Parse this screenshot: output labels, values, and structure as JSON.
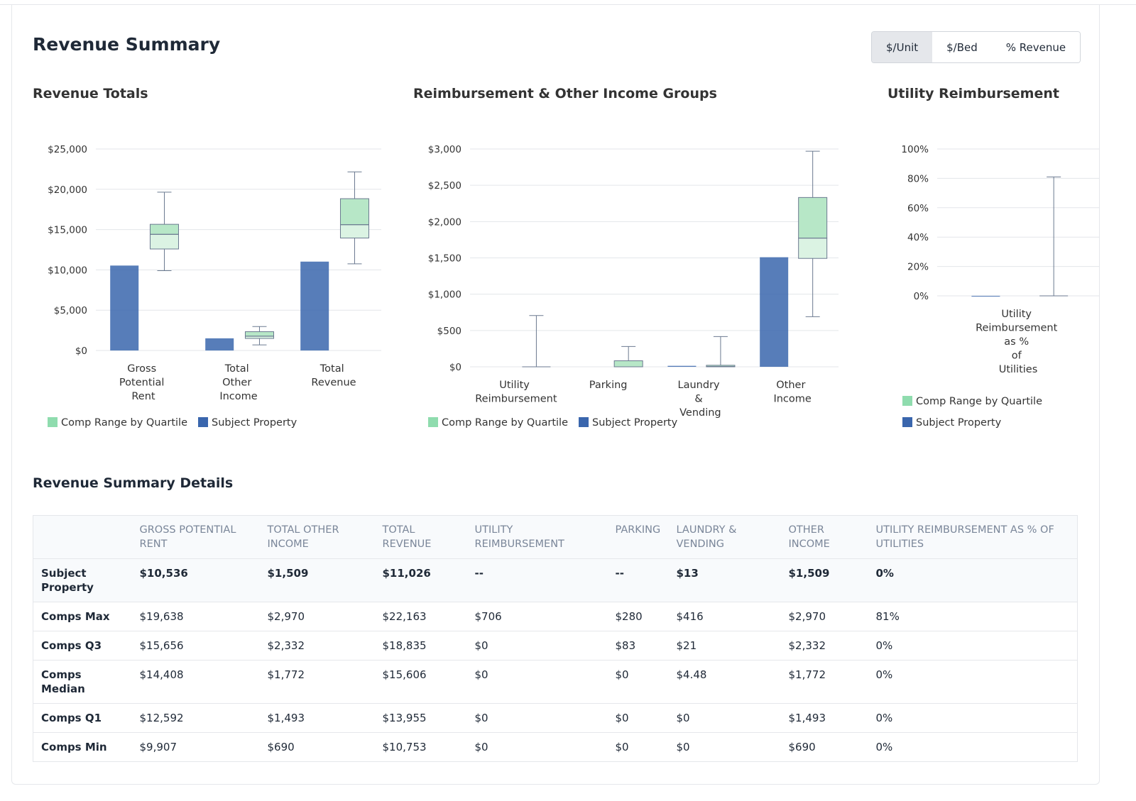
{
  "title": "Revenue Summary",
  "toggle": {
    "options": [
      "$/Unit",
      "$/Bed",
      "% Revenue"
    ],
    "active": 0
  },
  "chart_data": [
    {
      "type": "box",
      "title": "Revenue Totals",
      "categories": [
        "Gross Potential Rent",
        "Total Other Income",
        "Total Revenue"
      ],
      "ylim": [
        0,
        25000
      ],
      "yticks": [
        {
          "value": 0,
          "label": "$0"
        },
        {
          "value": 5000,
          "label": "$5,000"
        },
        {
          "value": 10000,
          "label": "$10,000"
        },
        {
          "value": 15000,
          "label": "$15,000"
        },
        {
          "value": 20000,
          "label": "$20,000"
        },
        {
          "value": 25000,
          "label": "$25,000"
        }
      ],
      "grid": true,
      "series": [
        {
          "name": "Comp Range by Quartile",
          "type": "box",
          "color": "#8fdcae",
          "color_upper": "#b7e7c7",
          "color_lower": "#dbf3e3",
          "min": [
            9907,
            690,
            10753
          ],
          "q1": [
            12592,
            1493,
            13955
          ],
          "median": [
            14408,
            1772,
            15606
          ],
          "q3": [
            15656,
            2332,
            18835
          ],
          "max": [
            19638,
            2970,
            22163
          ]
        },
        {
          "name": "Subject Property",
          "type": "bar",
          "color": "#3a66ad",
          "values": [
            10536,
            1509,
            11026
          ]
        }
      ]
    },
    {
      "type": "box",
      "title": "Reimbursement & Other Income Groups",
      "categories": [
        "Utility Reimbursement",
        "Parking",
        "Laundry & Vending",
        "Other Income"
      ],
      "ylim": [
        0,
        3000
      ],
      "yticks": [
        {
          "value": 0,
          "label": "$0"
        },
        {
          "value": 500,
          "label": "$500"
        },
        {
          "value": 1000,
          "label": "$1,000"
        },
        {
          "value": 1500,
          "label": "$1,500"
        },
        {
          "value": 2000,
          "label": "$2,000"
        },
        {
          "value": 2500,
          "label": "$2,500"
        },
        {
          "value": 3000,
          "label": "$3,000"
        }
      ],
      "grid": true,
      "series": [
        {
          "name": "Comp Range by Quartile",
          "type": "box",
          "color": "#8fdcae",
          "color_upper": "#b7e7c7",
          "color_lower": "#dbf3e3",
          "min": [
            0,
            0,
            0,
            690
          ],
          "q1": [
            0,
            0,
            0,
            1493
          ],
          "median": [
            0,
            0,
            4.48,
            1772
          ],
          "q3": [
            0,
            83,
            21,
            2332
          ],
          "max": [
            706,
            280,
            416,
            2970
          ]
        },
        {
          "name": "Subject Property",
          "type": "bar",
          "color": "#3a66ad",
          "values": [
            null,
            null,
            13,
            1509
          ]
        }
      ]
    },
    {
      "type": "box",
      "title": "Utility Reimbursement",
      "categories": [
        "Utility Reimbursement as % of Utilities"
      ],
      "ylim": [
        0,
        100
      ],
      "yticks": [
        {
          "value": 0,
          "label": "0%"
        },
        {
          "value": 20,
          "label": "20%"
        },
        {
          "value": 40,
          "label": "40%"
        },
        {
          "value": 60,
          "label": "60%"
        },
        {
          "value": 80,
          "label": "80%"
        },
        {
          "value": 100,
          "label": "100%"
        }
      ],
      "grid": true,
      "series": [
        {
          "name": "Comp Range by Quartile",
          "type": "box",
          "color": "#8fdcae",
          "color_upper": "#b7e7c7",
          "color_lower": "#dbf3e3",
          "min": [
            0
          ],
          "q1": [
            0
          ],
          "median": [
            0
          ],
          "q3": [
            0
          ],
          "max": [
            81
          ]
        },
        {
          "name": "Subject Property",
          "type": "bar",
          "color": "#3a66ad",
          "values": [
            0
          ]
        }
      ]
    }
  ],
  "details": {
    "title": "Revenue Summary Details",
    "columns": [
      "GROSS POTENTIAL RENT",
      "TOTAL OTHER INCOME",
      "TOTAL REVENUE",
      "UTILITY REIMBURSEMENT",
      "PARKING",
      "LAUNDRY & VENDING",
      "OTHER INCOME",
      "UTILITY REIMBURSEMENT AS % OF UTILITIES"
    ],
    "rows": [
      {
        "label": "Subject Property",
        "cells": [
          "$10,536",
          "$1,509",
          "$11,026",
          "--",
          "--",
          "$13",
          "$1,509",
          "0%"
        ]
      },
      {
        "label": "Comps Max",
        "cells": [
          "$19,638",
          "$2,970",
          "$22,163",
          "$706",
          "$280",
          "$416",
          "$2,970",
          "81%"
        ]
      },
      {
        "label": "Comps Q3",
        "cells": [
          "$15,656",
          "$2,332",
          "$18,835",
          "$0",
          "$83",
          "$21",
          "$2,332",
          "0%"
        ]
      },
      {
        "label": "Comps Median",
        "cells": [
          "$14,408",
          "$1,772",
          "$15,606",
          "$0",
          "$0",
          "$4.48",
          "$1,772",
          "0%"
        ]
      },
      {
        "label": "Comps Q1",
        "cells": [
          "$12,592",
          "$1,493",
          "$13,955",
          "$0",
          "$0",
          "$0",
          "$1,493",
          "0%"
        ]
      },
      {
        "label": "Comps Min",
        "cells": [
          "$9,907",
          "$690",
          "$10,753",
          "$0",
          "$0",
          "$0",
          "$690",
          "0%"
        ]
      }
    ]
  }
}
